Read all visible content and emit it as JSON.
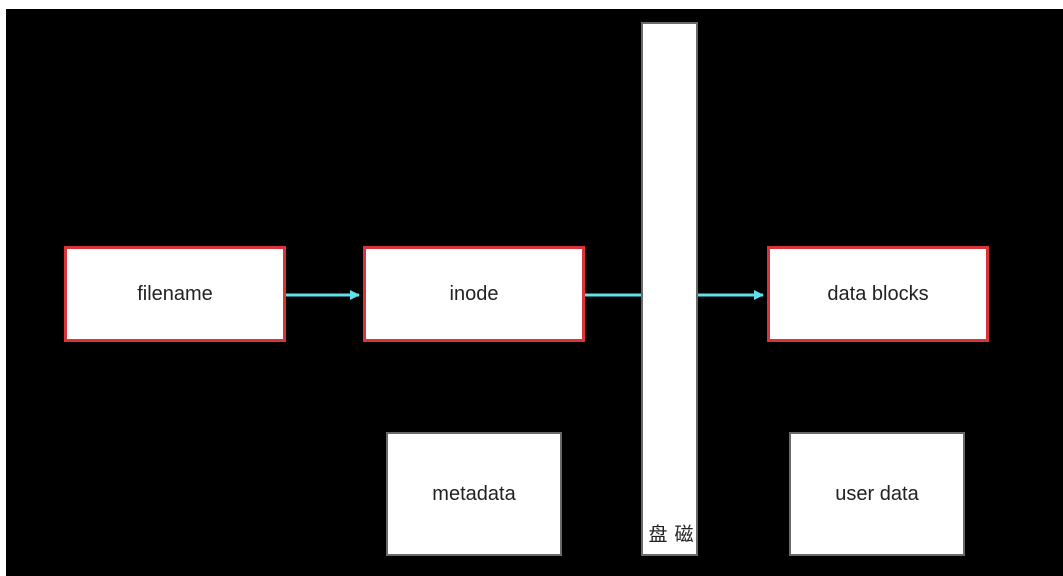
{
  "diagram": {
    "nodes": {
      "filename": "filename",
      "inode": "inode",
      "data_blocks": "data blocks",
      "metadata": "metadata",
      "user_data": "user data"
    },
    "disk_label": "磁盘",
    "edges": [
      {
        "from": "filename",
        "to": "inode",
        "arrow": true
      },
      {
        "from": "inode",
        "to": "disk",
        "arrow": false
      },
      {
        "from": "disk",
        "to": "data_blocks",
        "arrow": true
      }
    ],
    "colors": {
      "background": "#000000",
      "box_fill": "#ffffff",
      "highlight_border": "#d9343a",
      "plain_border": "#6a6a6a",
      "arrow": "#5fe0ea"
    }
  }
}
